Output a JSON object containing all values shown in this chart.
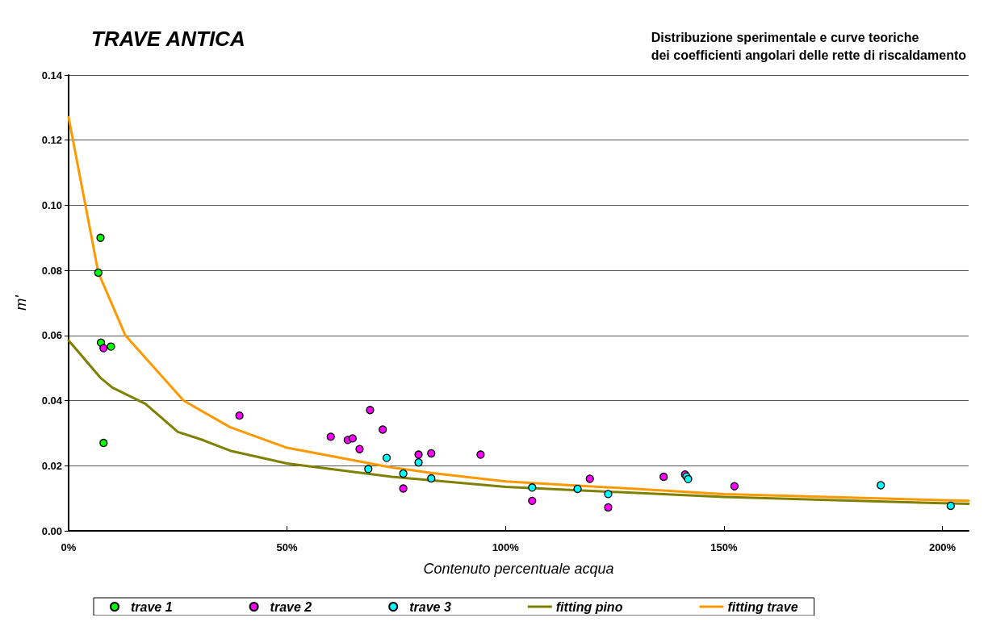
{
  "chart_data": {
    "type": "scatter",
    "title": "TRAVE ANTICA",
    "subtitle": "Distribuzione sperimentale e curve teoriche\ndei coefficienti angolari delle rette di riscaldamento",
    "xlabel": "Contenuto percentuale acqua",
    "ylabel": "m'",
    "xlim": [
      0,
      2.06
    ],
    "xticks": [
      {
        "value": 0,
        "label": "0%"
      },
      {
        "value": 0.5,
        "label": "50%"
      },
      {
        "value": 1,
        "label": "100%"
      },
      {
        "value": 1.5,
        "label": "150%"
      },
      {
        "value": 2,
        "label": "200%"
      }
    ],
    "ylim": [
      0,
      0.14
    ],
    "yticks": [
      {
        "value": 0,
        "label": "0.00"
      },
      {
        "value": 0.02,
        "label": "0.02"
      },
      {
        "value": 0.04,
        "label": "0.04"
      },
      {
        "value": 0.06,
        "label": "0.06"
      },
      {
        "value": 0.08,
        "label": "0.08"
      },
      {
        "value": 0.1,
        "label": "0.10"
      },
      {
        "value": 0.12,
        "label": "0.12"
      },
      {
        "value": 0.14,
        "label": "0.14"
      }
    ],
    "grid": "y",
    "legend": "bottom",
    "marker": "circle",
    "series": [
      {
        "name": "trave 1",
        "color": "#00ff00",
        "x": [
          0.073,
          0.068,
          0.074,
          0.097,
          0.08
        ],
        "values": [
          0.09,
          0.0793,
          0.0578,
          0.0566,
          0.027
        ]
      },
      {
        "name": "trave 2",
        "color": "#ff00ff",
        "x": [
          0.08,
          0.391,
          0.6,
          0.639,
          0.65,
          0.666,
          0.69,
          0.719,
          0.801,
          0.83,
          0.943,
          0.766,
          1.061,
          1.193,
          1.235,
          1.362,
          1.411,
          1.524
        ],
        "values": [
          0.0561,
          0.0354,
          0.0289,
          0.0279,
          0.0284,
          0.0251,
          0.0371,
          0.0311,
          0.0234,
          0.0238,
          0.0234,
          0.013,
          0.0092,
          0.016,
          0.0072,
          0.0166,
          0.0173,
          0.0137
        ]
      },
      {
        "name": "trave 3",
        "color": "#00ffff",
        "x": [
          0.686,
          0.728,
          0.766,
          0.801,
          0.83,
          1.061,
          1.165,
          1.235,
          1.414,
          1.418,
          1.859,
          2.019
        ],
        "values": [
          0.019,
          0.0224,
          0.0176,
          0.021,
          0.0161,
          0.0133,
          0.0129,
          0.0113,
          0.0167,
          0.0159,
          0.014,
          0.0077
        ]
      },
      {
        "name": "fitting pino",
        "type": "line",
        "marker": "none",
        "line_style": "solid",
        "color": "#808000",
        "x": [
          0,
          0.073,
          0.1,
          0.176,
          0.25,
          0.305,
          0.37,
          0.5,
          0.74,
          1.0,
          1.5,
          2.0,
          2.06
        ],
        "values": [
          0.0585,
          0.047,
          0.044,
          0.039,
          0.0304,
          0.028,
          0.0246,
          0.0207,
          0.0166,
          0.0135,
          0.0104,
          0.0085,
          0.0083
        ]
      },
      {
        "name": "fitting trave",
        "type": "line",
        "marker": "none",
        "line_style": "solid",
        "color": "#ff9900",
        "x": [
          0,
          0.068,
          0.13,
          0.263,
          0.37,
          0.5,
          0.737,
          0.83,
          1.0,
          1.5,
          2.0,
          2.06
        ],
        "values": [
          0.127,
          0.0793,
          0.06,
          0.04,
          0.0318,
          0.0255,
          0.0195,
          0.0178,
          0.0152,
          0.0113,
          0.0094,
          0.0092
        ]
      }
    ]
  }
}
